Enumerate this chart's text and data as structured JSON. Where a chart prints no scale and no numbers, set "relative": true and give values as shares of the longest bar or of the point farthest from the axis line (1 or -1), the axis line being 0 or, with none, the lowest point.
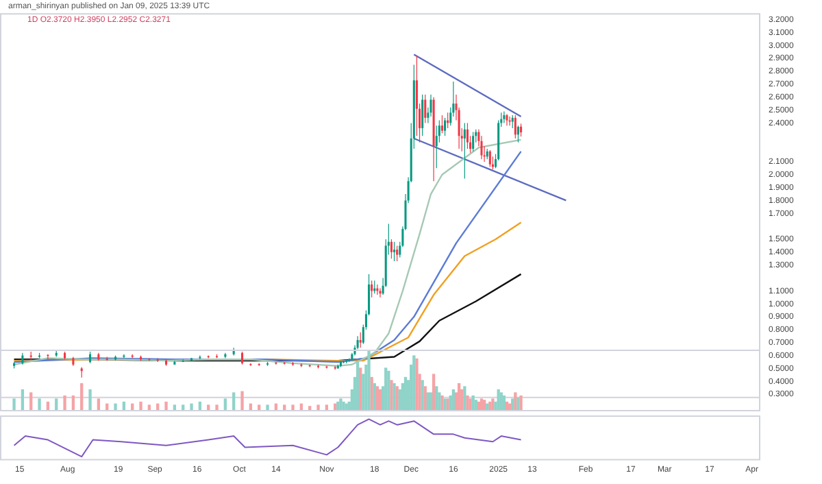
{
  "chart_data": [
    {
      "type": "candlestick",
      "title": "arman_shirinyan published on Jan 09, 2025 13:39 UTC",
      "subtitle": "1D O2.3720 H2.3950 L2.2952 C2.3271",
      "xlim": [
        "2024-07-08",
        "2025-04-04"
      ],
      "ylim": [
        0.27,
        3.25
      ],
      "yticks": [
        {
          "value": 0.3,
          "label": "0.3000"
        },
        {
          "value": 0.4,
          "label": "0.4000"
        },
        {
          "value": 0.5,
          "label": "0.5000"
        },
        {
          "value": 0.6,
          "label": "0.6000"
        },
        {
          "value": 0.7,
          "label": "0.7000"
        },
        {
          "value": 0.8,
          "label": "0.8000"
        },
        {
          "value": 0.9,
          "label": "0.9000"
        },
        {
          "value": 1.0,
          "label": "1.0000"
        },
        {
          "value": 1.1,
          "label": "1.1000"
        },
        {
          "value": 1.3,
          "label": "1.3000"
        },
        {
          "value": 1.4,
          "label": "1.4000"
        },
        {
          "value": 1.5,
          "label": "1.5000"
        },
        {
          "value": 1.7,
          "label": "1.7000"
        },
        {
          "value": 1.8,
          "label": "1.8000"
        },
        {
          "value": 1.9,
          "label": "1.9000"
        },
        {
          "value": 2.0,
          "label": "2.0000"
        },
        {
          "value": 2.1,
          "label": "2.1000"
        },
        {
          "value": 2.4,
          "label": "2.4000"
        },
        {
          "value": 2.5,
          "label": "2.5000"
        },
        {
          "value": 2.6,
          "label": "2.6000"
        },
        {
          "value": 2.7,
          "label": "2.7000"
        },
        {
          "value": 2.8,
          "label": "2.8000"
        },
        {
          "value": 2.9,
          "label": "2.9000"
        },
        {
          "value": 3.0,
          "label": "3.0000"
        },
        {
          "value": 3.1,
          "label": "3.1000"
        },
        {
          "value": 3.2,
          "label": "3.2000"
        }
      ],
      "tick_labels": "y",
      "legend": false,
      "grid": false,
      "series": [
        {
          "type": "candlestick",
          "color": "#089981",
          "x": [
            "2024-07-13",
            "2024-07-16",
            "2024-07-22",
            "2024-07-28",
            "2024-08-09",
            "2024-08-18",
            "2024-08-21",
            "2024-09-08",
            "2024-09-11",
            "2024-09-14",
            "2024-09-17",
            "2024-09-26",
            "2024-09-29",
            "2024-10-11",
            "2024-11-05",
            "2024-11-06",
            "2024-11-07",
            "2024-11-08",
            "2024-11-09",
            "2024-11-10",
            "2024-11-11",
            "2024-11-12",
            "2024-11-14",
            "2024-11-15",
            "2024-11-16",
            "2024-11-18",
            "2024-11-21",
            "2024-11-22",
            "2024-11-23",
            "2024-11-25",
            "2024-11-27",
            "2024-11-28",
            "2024-11-29",
            "2024-11-30",
            "2024-12-01",
            "2024-12-02",
            "2024-12-05",
            "2024-12-07",
            "2024-12-08",
            "2024-12-10",
            "2024-12-11",
            "2024-12-13",
            "2024-12-15",
            "2024-12-16",
            "2024-12-20",
            "2024-12-23",
            "2024-12-24",
            "2024-12-28",
            "2024-12-31",
            "2025-01-01",
            "2025-01-02",
            "2025-01-03",
            "2025-01-06",
            "2025-01-08"
          ],
          "ohlc": [
            [
              0.52,
              0.55,
              0.5,
              0.54
            ],
            [
              0.54,
              0.62,
              0.53,
              0.6
            ],
            [
              0.59,
              0.62,
              0.58,
              0.6
            ],
            [
              0.6,
              0.64,
              0.59,
              0.62
            ],
            [
              0.55,
              0.63,
              0.54,
              0.61
            ],
            [
              0.57,
              0.6,
              0.56,
              0.59
            ],
            [
              0.59,
              0.61,
              0.58,
              0.6
            ],
            [
              0.53,
              0.56,
              0.53,
              0.55
            ],
            [
              0.55,
              0.57,
              0.55,
              0.56
            ],
            [
              0.56,
              0.58,
              0.56,
              0.58
            ],
            [
              0.58,
              0.6,
              0.57,
              0.59
            ],
            [
              0.59,
              0.62,
              0.58,
              0.61
            ],
            [
              0.61,
              0.66,
              0.6,
              0.64
            ],
            [
              0.53,
              0.55,
              0.52,
              0.54
            ],
            [
              0.5,
              0.53,
              0.5,
              0.52
            ],
            [
              0.52,
              0.56,
              0.51,
              0.55
            ],
            [
              0.55,
              0.56,
              0.54,
              0.555
            ],
            [
              0.55,
              0.57,
              0.54,
              0.56
            ],
            [
              0.56,
              0.58,
              0.55,
              0.57
            ],
            [
              0.57,
              0.62,
              0.56,
              0.61
            ],
            [
              0.61,
              0.68,
              0.6,
              0.66
            ],
            [
              0.66,
              0.75,
              0.65,
              0.72
            ],
            [
              0.7,
              0.84,
              0.69,
              0.82
            ],
            [
              0.82,
              0.95,
              0.8,
              0.92
            ],
            [
              0.92,
              1.23,
              0.91,
              1.15
            ],
            [
              1.1,
              1.18,
              1.08,
              1.12
            ],
            [
              1.08,
              1.2,
              1.07,
              1.14
            ],
            [
              1.14,
              1.5,
              1.13,
              1.45
            ],
            [
              1.45,
              1.62,
              1.38,
              1.48
            ],
            [
              1.4,
              1.48,
              1.33,
              1.42
            ],
            [
              1.38,
              1.48,
              1.36,
              1.45
            ],
            [
              1.45,
              1.6,
              1.44,
              1.58
            ],
            [
              1.58,
              1.85,
              1.57,
              1.8
            ],
            [
              1.8,
              1.98,
              1.78,
              1.95
            ],
            [
              1.95,
              2.4,
              1.94,
              2.28
            ],
            [
              2.28,
              2.85,
              2.2,
              2.73
            ],
            [
              2.36,
              2.62,
              2.3,
              2.58
            ],
            [
              2.44,
              2.52,
              2.4,
              2.48
            ],
            [
              2.48,
              2.62,
              2.45,
              2.58
            ],
            [
              2.22,
              2.38,
              2.05,
              2.3
            ],
            [
              2.3,
              2.42,
              2.25,
              2.38
            ],
            [
              2.34,
              2.44,
              2.3,
              2.42
            ],
            [
              2.4,
              2.52,
              2.38,
              2.48
            ],
            [
              2.48,
              2.72,
              2.45,
              2.55
            ],
            [
              2.28,
              2.4,
              1.97,
              2.35
            ],
            [
              2.2,
              2.33,
              2.18,
              2.3
            ],
            [
              2.3,
              2.35,
              2.25,
              2.33
            ],
            [
              2.14,
              2.2,
              2.12,
              2.18
            ],
            [
              2.06,
              2.16,
              2.05,
              2.12
            ],
            [
              2.12,
              2.42,
              2.11,
              2.4
            ],
            [
              2.4,
              2.48,
              2.37,
              2.43
            ],
            [
              2.43,
              2.49,
              2.4,
              2.46
            ],
            [
              2.41,
              2.46,
              2.36,
              2.44
            ],
            [
              2.31,
              2.38,
              2.25,
              2.37
            ]
          ]
        },
        {
          "type": "candlestick",
          "color": "#f23645",
          "x": [
            "2024-07-19",
            "2024-07-25",
            "2024-07-31",
            "2024-08-03",
            "2024-08-06",
            "2024-08-12",
            "2024-08-15",
            "2024-08-24",
            "2024-08-27",
            "2024-08-30",
            "2024-09-02",
            "2024-09-05",
            "2024-09-20",
            "2024-09-23",
            "2024-10-02",
            "2024-10-05",
            "2024-10-08",
            "2024-10-14",
            "2024-10-17",
            "2024-10-20",
            "2024-10-23",
            "2024-10-26",
            "2024-10-29",
            "2024-11-01",
            "2024-11-04",
            "2024-11-13",
            "2024-11-17",
            "2024-11-19",
            "2024-11-20",
            "2024-11-24",
            "2024-11-26",
            "2024-12-03",
            "2024-12-04",
            "2024-12-06",
            "2024-12-09",
            "2024-12-12",
            "2024-12-14",
            "2024-12-17",
            "2024-12-18",
            "2024-12-19",
            "2024-12-21",
            "2024-12-22",
            "2024-12-25",
            "2024-12-26",
            "2024-12-27",
            "2024-12-29",
            "2024-12-30",
            "2025-01-04",
            "2025-01-05",
            "2025-01-07",
            "2025-01-09"
          ],
          "ohlc": [
            [
              0.6,
              0.63,
              0.57,
              0.59
            ],
            [
              0.605,
              0.61,
              0.57,
              0.6
            ],
            [
              0.62,
              0.63,
              0.57,
              0.58
            ],
            [
              0.58,
              0.59,
              0.52,
              0.53
            ],
            [
              0.5,
              0.51,
              0.43,
              0.48
            ],
            [
              0.61,
              0.62,
              0.56,
              0.57
            ],
            [
              0.575,
              0.59,
              0.56,
              0.57
            ],
            [
              0.6,
              0.61,
              0.58,
              0.59
            ],
            [
              0.59,
              0.6,
              0.56,
              0.57
            ],
            [
              0.575,
              0.58,
              0.56,
              0.57
            ],
            [
              0.57,
              0.58,
              0.55,
              0.56
            ],
            [
              0.56,
              0.57,
              0.52,
              0.53
            ],
            [
              0.595,
              0.6,
              0.58,
              0.59
            ],
            [
              0.595,
              0.61,
              0.58,
              0.59
            ],
            [
              0.62,
              0.63,
              0.53,
              0.54
            ],
            [
              0.535,
              0.54,
              0.52,
              0.53
            ],
            [
              0.535,
              0.54,
              0.52,
              0.53
            ],
            [
              0.545,
              0.55,
              0.53,
              0.54
            ],
            [
              0.545,
              0.55,
              0.53,
              0.54
            ],
            [
              0.54,
              0.55,
              0.52,
              0.53
            ],
            [
              0.53,
              0.54,
              0.51,
              0.52
            ],
            [
              0.525,
              0.53,
              0.51,
              0.52
            ],
            [
              0.52,
              0.53,
              0.5,
              0.51
            ],
            [
              0.515,
              0.52,
              0.5,
              0.51
            ],
            [
              0.51,
              0.52,
              0.49,
              0.5
            ],
            [
              0.72,
              0.78,
              0.66,
              0.7
            ],
            [
              1.15,
              1.18,
              1.05,
              1.1
            ],
            [
              1.12,
              1.15,
              1.07,
              1.1
            ],
            [
              1.1,
              1.12,
              1.05,
              1.08
            ],
            [
              1.48,
              1.5,
              1.35,
              1.4
            ],
            [
              1.42,
              1.45,
              1.33,
              1.38
            ],
            [
              2.73,
              2.92,
              2.3,
              2.51
            ],
            [
              2.51,
              2.55,
              2.25,
              2.36
            ],
            [
              2.58,
              2.62,
              2.4,
              2.44
            ],
            [
              2.58,
              2.6,
              1.95,
              2.22
            ],
            [
              2.38,
              2.46,
              2.32,
              2.34
            ],
            [
              2.42,
              2.48,
              2.36,
              2.4
            ],
            [
              2.55,
              2.62,
              2.42,
              2.5
            ],
            [
              2.5,
              2.52,
              2.2,
              2.3
            ],
            [
              2.3,
              2.36,
              2.18,
              2.28
            ],
            [
              2.35,
              2.4,
              2.2,
              2.25
            ],
            [
              2.25,
              2.3,
              2.17,
              2.2
            ],
            [
              2.33,
              2.35,
              2.22,
              2.26
            ],
            [
              2.26,
              2.3,
              2.12,
              2.15
            ],
            [
              2.15,
              2.22,
              2.1,
              2.14
            ],
            [
              2.18,
              2.19,
              2.06,
              2.08
            ],
            [
              2.08,
              2.14,
              2.04,
              2.06
            ],
            [
              2.46,
              2.47,
              2.38,
              2.42
            ],
            [
              2.42,
              2.45,
              2.38,
              2.41
            ],
            [
              2.44,
              2.46,
              2.28,
              2.31
            ],
            [
              2.372,
              2.395,
              2.2952,
              2.3271
            ]
          ]
        },
        {
          "type": "line",
          "color": "#a5c9b4",
          "x": [
            "2024-07-13",
            "2024-07-25",
            "2024-08-08",
            "2024-08-20",
            "2024-09-05",
            "2024-09-20",
            "2024-10-05",
            "2024-10-20",
            "2024-11-05",
            "2024-11-10",
            "2024-11-18",
            "2024-11-23",
            "2024-11-28",
            "2024-12-04",
            "2024-12-08",
            "2024-12-12",
            "2024-12-25",
            "2025-01-09"
          ],
          "values": [
            0.53,
            0.58,
            0.57,
            0.57,
            0.56,
            0.57,
            0.57,
            0.54,
            0.52,
            0.53,
            0.62,
            0.77,
            1.1,
            1.54,
            1.85,
            2.0,
            2.21,
            2.27
          ]
        },
        {
          "type": "line",
          "color": "#5b7bd5",
          "x": [
            "2024-07-13",
            "2024-08-10",
            "2024-09-10",
            "2024-10-10",
            "2024-11-05",
            "2024-11-15",
            "2024-11-25",
            "2024-12-02",
            "2024-12-17",
            "2025-01-09"
          ],
          "values": [
            0.55,
            0.58,
            0.57,
            0.57,
            0.55,
            0.58,
            0.72,
            0.9,
            1.47,
            2.18
          ]
        },
        {
          "type": "line",
          "color": "#f0a020",
          "x": [
            "2024-07-13",
            "2024-08-10",
            "2024-09-10",
            "2024-10-10",
            "2024-11-05",
            "2024-11-14",
            "2024-11-30",
            "2024-12-09",
            "2024-12-20",
            "2024-12-31",
            "2025-01-09"
          ],
          "values": [
            0.56,
            0.57,
            0.57,
            0.57,
            0.56,
            0.56,
            0.74,
            1.07,
            1.37,
            1.5,
            1.63
          ]
        },
        {
          "type": "line",
          "color": "#111111",
          "x": [
            "2024-07-13",
            "2024-08-10",
            "2024-09-10",
            "2024-10-10",
            "2024-11-05",
            "2024-11-25",
            "2024-12-04",
            "2024-12-11",
            "2024-12-24",
            "2025-01-09"
          ],
          "values": [
            0.57,
            0.57,
            0.56,
            0.56,
            0.56,
            0.59,
            0.71,
            0.87,
            1.02,
            1.23
          ]
        },
        {
          "type": "line",
          "color": "#5c6bc0",
          "x": [
            "2024-12-02",
            "2025-01-09"
          ],
          "values": [
            2.93,
            2.45
          ]
        },
        {
          "type": "line",
          "color": "#5c6bc0",
          "x": [
            "2024-12-02",
            "2025-01-25"
          ],
          "values": [
            2.28,
            1.8
          ]
        }
      ]
    },
    {
      "type": "bar",
      "relative": true,
      "tick_labels": false,
      "xlim": [
        "2024-07-08",
        "2025-04-04"
      ],
      "legend": false,
      "series": [
        {
          "color": "#8fd3c9",
          "x": [
            "2024-07-13",
            "2024-07-16",
            "2024-07-22",
            "2024-07-28",
            "2024-08-09",
            "2024-08-18",
            "2024-08-21",
            "2024-09-08",
            "2024-09-11",
            "2024-09-14",
            "2024-09-17",
            "2024-09-26",
            "2024-09-29",
            "2024-10-11",
            "2024-11-05",
            "2024-11-06",
            "2024-11-07",
            "2024-11-08",
            "2024-11-09",
            "2024-11-10",
            "2024-11-11",
            "2024-11-12",
            "2024-11-14",
            "2024-11-15",
            "2024-11-16",
            "2024-11-18",
            "2024-11-21",
            "2024-11-22",
            "2024-11-23",
            "2024-11-25",
            "2024-11-27",
            "2024-11-28",
            "2024-11-29",
            "2024-11-30",
            "2024-12-01",
            "2024-12-02",
            "2024-12-05",
            "2024-12-07",
            "2024-12-08",
            "2024-12-10",
            "2024-12-11",
            "2024-12-13",
            "2024-12-15",
            "2024-12-16",
            "2024-12-20",
            "2024-12-23",
            "2024-12-24",
            "2024-12-28",
            "2024-12-31",
            "2025-01-01",
            "2025-01-02",
            "2025-01-03",
            "2025-01-06",
            "2025-01-08"
          ],
          "values": [
            0.2,
            0.35,
            0.2,
            0.2,
            0.35,
            0.12,
            0.15,
            0.1,
            0.1,
            0.12,
            0.15,
            0.2,
            0.3,
            0.1,
            0.15,
            0.2,
            0.15,
            0.12,
            0.15,
            0.35,
            0.55,
            0.8,
            0.6,
            0.75,
            1,
            0.45,
            0.4,
            0.7,
            0.65,
            0.45,
            0.35,
            0.45,
            0.55,
            0.5,
            0.75,
            0.9,
            0.5,
            0.3,
            0.3,
            0.4,
            0.3,
            0.2,
            0.25,
            0.35,
            0.4,
            0.25,
            0.18,
            0.12,
            0.15,
            0.35,
            0.3,
            0.25,
            0.2,
            0.22
          ]
        },
        {
          "color": "#f5a3a6",
          "x": [
            "2024-07-19",
            "2024-07-25",
            "2024-07-31",
            "2024-08-03",
            "2024-08-06",
            "2024-08-12",
            "2024-08-15",
            "2024-08-24",
            "2024-08-27",
            "2024-08-30",
            "2024-09-02",
            "2024-09-05",
            "2024-09-20",
            "2024-09-23",
            "2024-10-02",
            "2024-10-05",
            "2024-10-08",
            "2024-10-14",
            "2024-10-17",
            "2024-10-20",
            "2024-10-23",
            "2024-10-26",
            "2024-10-29",
            "2024-11-01",
            "2024-11-04",
            "2024-11-13",
            "2024-11-17",
            "2024-11-19",
            "2024-11-20",
            "2024-11-24",
            "2024-11-26",
            "2024-12-03",
            "2024-12-04",
            "2024-12-06",
            "2024-12-09",
            "2024-12-12",
            "2024-12-14",
            "2024-12-17",
            "2024-12-18",
            "2024-12-19",
            "2024-12-21",
            "2024-12-22",
            "2024-12-25",
            "2024-12-26",
            "2024-12-27",
            "2024-12-29",
            "2024-12-30",
            "2025-01-04",
            "2025-01-05",
            "2025-01-07",
            "2025-01-09"
          ],
          "values": [
            0.3,
            0.15,
            0.25,
            0.25,
            0.45,
            0.2,
            0.12,
            0.12,
            0.15,
            0.1,
            0.12,
            0.15,
            0.1,
            0.1,
            0.32,
            0.12,
            0.1,
            0.12,
            0.1,
            0.1,
            0.12,
            0.08,
            0.1,
            0.1,
            0.12,
            0.7,
            0.55,
            0.4,
            0.35,
            0.5,
            0.4,
            0.85,
            0.6,
            0.4,
            0.6,
            0.25,
            0.2,
            0.3,
            0.45,
            0.35,
            0.25,
            0.2,
            0.15,
            0.2,
            0.18,
            0.15,
            0.2,
            0.15,
            0.12,
            0.3,
            0.25
          ]
        }
      ]
    },
    {
      "type": "line",
      "relative": true,
      "tick_labels": "x",
      "xlim": [
        "2024-07-08",
        "2025-04-04"
      ],
      "legend": false,
      "color": "#7e57c2",
      "x": [
        "2024-07-13",
        "2024-07-17",
        "2024-07-25",
        "2024-08-06",
        "2024-08-10",
        "2024-08-20",
        "2024-09-05",
        "2024-09-20",
        "2024-09-29",
        "2024-10-03",
        "2024-10-20",
        "2024-11-01",
        "2024-11-05",
        "2024-11-12",
        "2024-11-16",
        "2024-11-20",
        "2024-11-23",
        "2024-11-26",
        "2024-12-02",
        "2024-12-09",
        "2024-12-16",
        "2024-12-20",
        "2024-12-30",
        "2025-01-02",
        "2025-01-09"
      ],
      "values": [
        0.3,
        0.55,
        0.45,
        0,
        0.45,
        0.4,
        0.3,
        0.45,
        0.55,
        0.25,
        0.3,
        0.05,
        0.25,
        0.85,
        1,
        0.85,
        0.95,
        0.85,
        0.95,
        0.6,
        0.6,
        0.5,
        0.4,
        0.55,
        0.45
      ],
      "xticks": [
        {
          "value": "2024-07-15",
          "label": "15"
        },
        {
          "value": "2024-08-01",
          "label": "Aug"
        },
        {
          "value": "2024-08-19",
          "label": "19"
        },
        {
          "value": "2024-09-01",
          "label": "Sep"
        },
        {
          "value": "2024-09-16",
          "label": "16"
        },
        {
          "value": "2024-10-01",
          "label": "Oct"
        },
        {
          "value": "2024-10-14",
          "label": "14"
        },
        {
          "value": "2024-11-01",
          "label": "Nov"
        },
        {
          "value": "2024-11-18",
          "label": "18"
        },
        {
          "value": "2024-12-01",
          "label": "Dec"
        },
        {
          "value": "2024-12-16",
          "label": "16"
        },
        {
          "value": "2025-01-01",
          "label": "2025"
        },
        {
          "value": "2025-01-13",
          "label": "13"
        },
        {
          "value": "2025-02-01",
          "label": "Feb"
        },
        {
          "value": "2025-02-17",
          "label": "17"
        },
        {
          "value": "2025-03-01",
          "label": "Mar"
        },
        {
          "value": "2025-03-17",
          "label": "17"
        },
        {
          "value": "2025-04-01",
          "label": "Apr"
        }
      ]
    }
  ]
}
